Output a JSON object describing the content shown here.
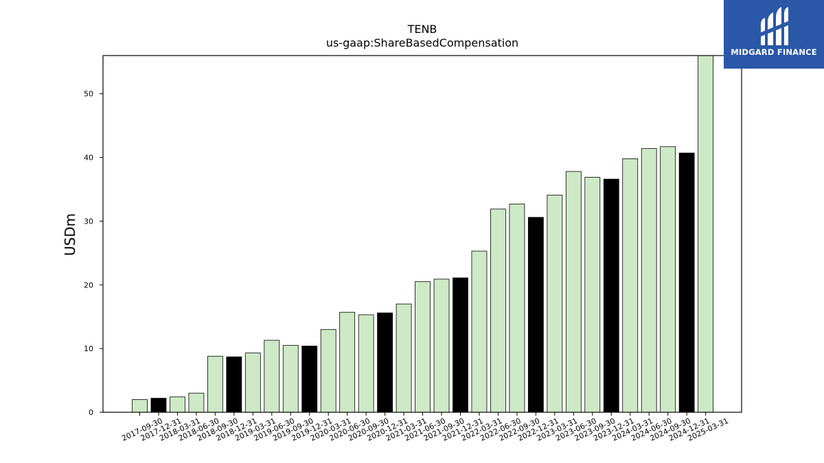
{
  "chart_data": {
    "type": "bar",
    "title": "TENB",
    "subtitle": "us-gaap:ShareBasedCompensation",
    "xlabel": "",
    "ylabel": "USDm",
    "ylim": [
      0,
      56
    ],
    "yticks": [
      0,
      10,
      20,
      30,
      40,
      50
    ],
    "grid": false,
    "categories": [
      "2017-09-30",
      "2017-12-31",
      "2018-03-31",
      "2018-06-30",
      "2018-09-30",
      "2018-12-31",
      "2019-03-31",
      "2019-06-30",
      "2019-09-30",
      "2019-12-31",
      "2020-03-31",
      "2020-06-30",
      "2020-09-30",
      "2020-12-31",
      "2021-03-31",
      "2021-06-30",
      "2021-09-30",
      "2021-12-31",
      "2022-03-31",
      "2022-06-30",
      "2022-09-30",
      "2022-12-31",
      "2023-03-31",
      "2023-06-30",
      "2023-09-30",
      "2023-12-31",
      "2024-03-31",
      "2024-06-30",
      "2024-09-30",
      "2024-12-31",
      "2025-03-31"
    ],
    "values": [
      2.0,
      2.2,
      2.4,
      3.0,
      8.8,
      8.7,
      9.3,
      11.3,
      10.5,
      10.4,
      13.0,
      15.7,
      15.3,
      15.6,
      17.0,
      20.5,
      20.9,
      21.1,
      25.3,
      31.9,
      32.7,
      30.6,
      34.1,
      37.8,
      36.9,
      36.6,
      39.8,
      41.4,
      41.7,
      40.7,
      56.0
    ],
    "bar_colors": [
      "#cde9c5",
      "#000000",
      "#cde9c5",
      "#cde9c5",
      "#cde9c5",
      "#000000",
      "#cde9c5",
      "#cde9c5",
      "#cde9c5",
      "#000000",
      "#cde9c5",
      "#cde9c5",
      "#cde9c5",
      "#000000",
      "#cde9c5",
      "#cde9c5",
      "#cde9c5",
      "#000000",
      "#cde9c5",
      "#cde9c5",
      "#cde9c5",
      "#000000",
      "#cde9c5",
      "#cde9c5",
      "#cde9c5",
      "#000000",
      "#cde9c5",
      "#cde9c5",
      "#cde9c5",
      "#000000",
      "#cde9c5"
    ],
    "edge_color": "#000000"
  },
  "logo": {
    "text": "MIDGARD FINANCE",
    "background": "#2a57a8"
  }
}
